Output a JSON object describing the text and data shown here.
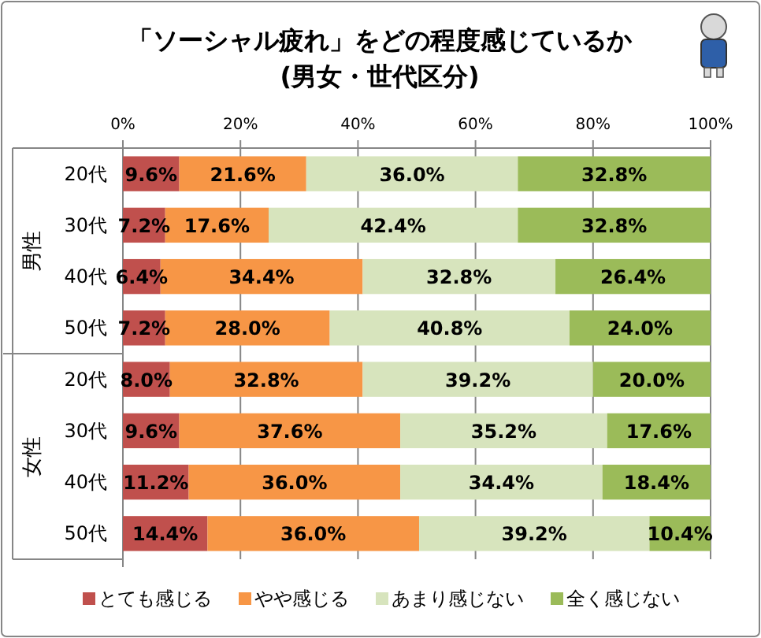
{
  "chart_data": {
    "type": "bar",
    "orientation": "horizontal",
    "stacked": true,
    "title": "「ソーシャル疲れ」をどの程度感じているか",
    "subtitle": "(男女・世代区分)",
    "categories": [
      "20代",
      "30代",
      "40代",
      "50代",
      "20代",
      "30代",
      "40代",
      "50代"
    ],
    "annotations": [
      "男性",
      "女性"
    ],
    "xlim": [
      0,
      100
    ],
    "xticks": [
      {
        "value": 0,
        "label": "0%"
      },
      {
        "value": 20,
        "label": "20%"
      },
      {
        "value": 40,
        "label": "40%"
      },
      {
        "value": 60,
        "label": "60%"
      },
      {
        "value": 80,
        "label": "80%"
      },
      {
        "value": 100,
        "label": "100%"
      }
    ],
    "grid": "x",
    "legend": "bottom",
    "series": [
      {
        "name": "とても感じる",
        "color": "#c0504d",
        "values": [
          9.6,
          7.2,
          6.4,
          7.2,
          8.0,
          9.6,
          11.2,
          14.4
        ],
        "value_labels": [
          "9.6%",
          "7.2%",
          "6.4%",
          "7.2%",
          "8.0%",
          "9.6%",
          "11.2%",
          "14.4%"
        ]
      },
      {
        "name": "やや感じる",
        "color": "#f79646",
        "values": [
          21.6,
          17.6,
          34.4,
          28.0,
          32.8,
          37.6,
          36.0,
          36.0
        ],
        "value_labels": [
          "21.6%",
          "17.6%",
          "34.4%",
          "28.0%",
          "32.8%",
          "37.6%",
          "36.0%",
          "36.0%"
        ]
      },
      {
        "name": "あまり感じない",
        "color": "#d7e4bd",
        "values": [
          36.0,
          42.4,
          32.8,
          40.8,
          39.2,
          35.2,
          34.4,
          39.2
        ],
        "value_labels": [
          "36.0%",
          "42.4%",
          "32.8%",
          "40.8%",
          "39.2%",
          "35.2%",
          "34.4%",
          "39.2%"
        ]
      },
      {
        "name": "全く感じない",
        "color": "#9bbb59",
        "values": [
          32.8,
          32.8,
          26.4,
          24.0,
          20.0,
          17.6,
          18.4,
          10.4
        ],
        "value_labels": [
          "32.8%",
          "32.8%",
          "26.4%",
          "24.0%",
          "20.0%",
          "17.6%",
          "18.4%",
          "10.4%"
        ]
      }
    ]
  }
}
